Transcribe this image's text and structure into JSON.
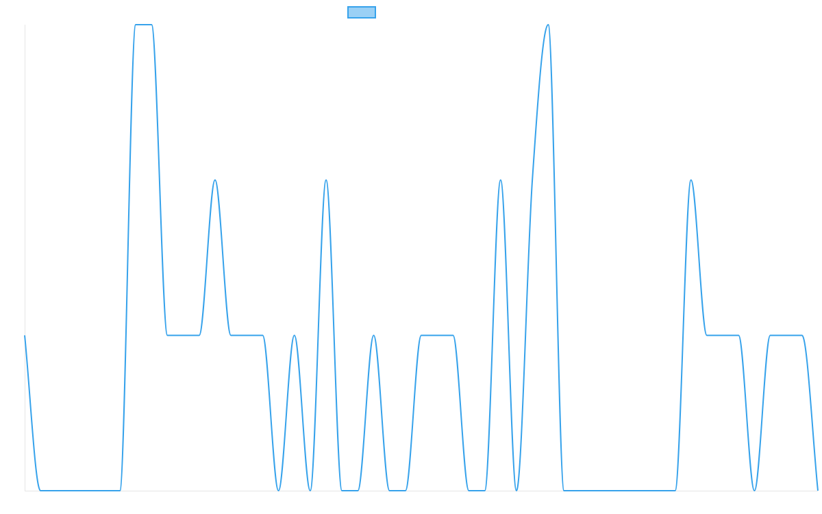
{
  "chart_data": {
    "type": "line",
    "title": "",
    "xlabel": "",
    "ylabel": "",
    "legend": {
      "position": "top-center",
      "label": ""
    },
    "grid": false,
    "ylim": [
      0,
      3
    ],
    "series": [
      {
        "color": "#36a2eb",
        "fill": "#9ad0f5",
        "values": [
          1,
          0,
          0,
          0,
          0,
          0,
          0,
          3,
          3,
          1,
          1,
          1,
          2,
          1,
          1,
          1,
          0,
          1,
          0,
          2,
          0,
          0,
          1,
          0,
          0,
          1,
          1,
          1,
          0,
          0,
          2,
          0,
          2,
          3,
          0,
          0,
          0,
          0,
          0,
          0,
          0,
          0,
          2,
          1,
          1,
          1,
          0,
          1,
          1,
          1,
          0
        ]
      }
    ]
  }
}
